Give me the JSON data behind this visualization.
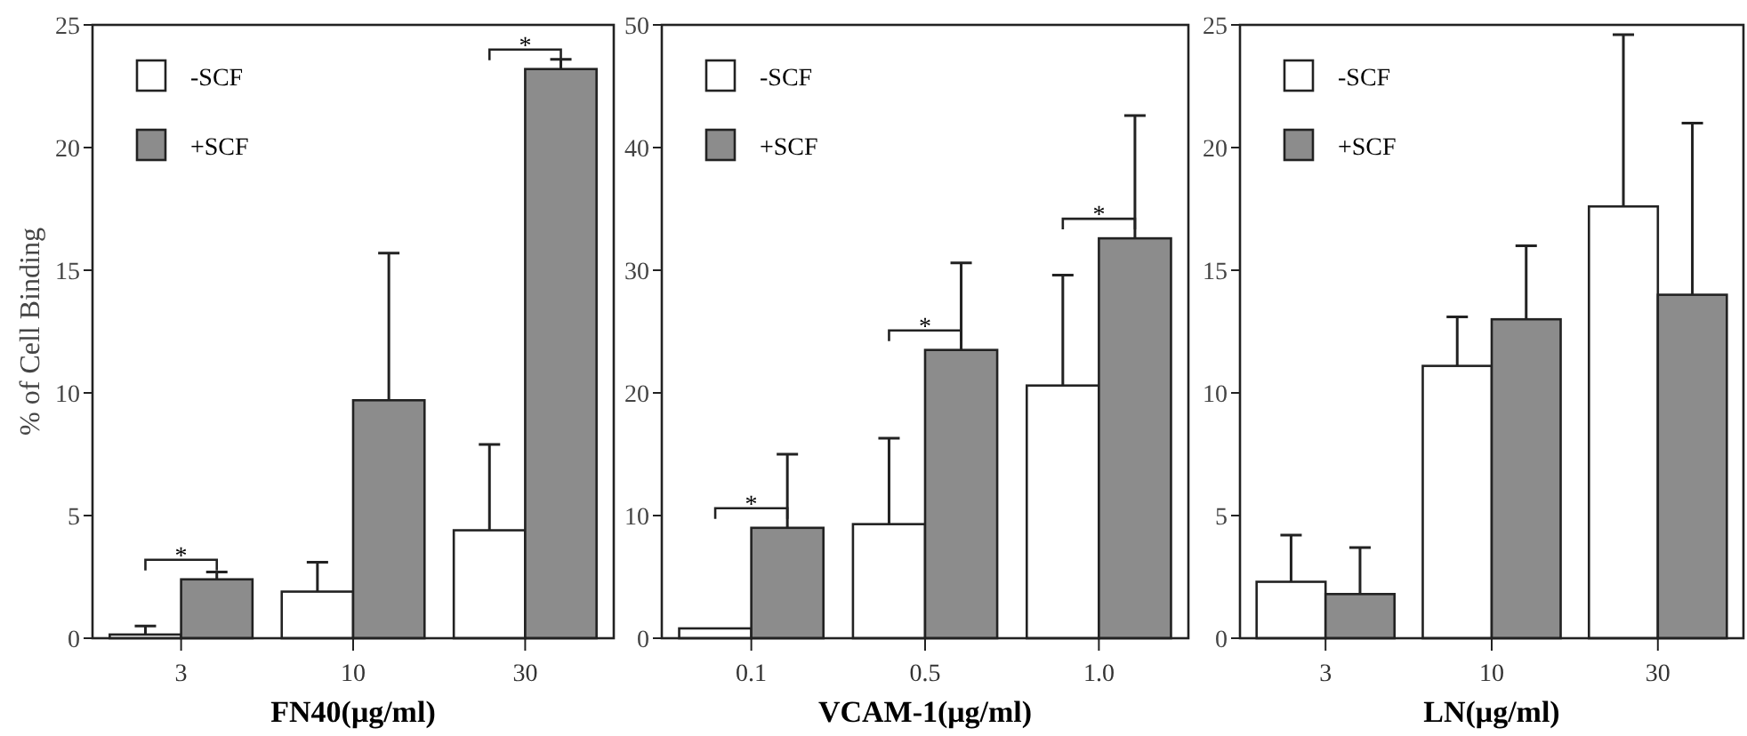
{
  "chart_data": [
    {
      "type": "bar",
      "xlabel": "FN40(μg/ml)",
      "ylabel": "% of Cell Binding",
      "categories": [
        "3",
        "10",
        "30"
      ],
      "ylim": [
        0,
        25
      ],
      "yticks": [
        0,
        5,
        10,
        15,
        20,
        25
      ],
      "legend": "top left",
      "grid": false,
      "series": [
        {
          "name": "-SCF",
          "color": "#ffffff",
          "values": [
            0.15,
            1.9,
            4.4
          ],
          "errors": [
            [
              0.15,
              0.5
            ],
            [
              1.9,
              3.1
            ],
            [
              4.4,
              7.9
            ]
          ]
        },
        {
          "name": "+SCF",
          "color": "#8c8c8c",
          "values": [
            2.4,
            9.7,
            23.2
          ],
          "errors": [
            [
              2.4,
              2.7
            ],
            [
              9.7,
              15.7
            ],
            [
              23.2,
              23.6
            ]
          ]
        }
      ],
      "annotations": [
        {
          "text": "*",
          "x": "3",
          "y": 2.4
        },
        {
          "text": "*",
          "x": "30",
          "y": 23.2
        }
      ]
    },
    {
      "type": "bar",
      "xlabel": "VCAM-1(μg/ml)",
      "categories": [
        "0.1",
        "0.5",
        "1.0"
      ],
      "ylim": [
        0,
        50
      ],
      "yticks": [
        0,
        10,
        20,
        30,
        40,
        50
      ],
      "legend": "top left",
      "grid": false,
      "series": [
        {
          "name": "-SCF",
          "color": "#ffffff",
          "values": [
            0.8,
            9.3,
            20.6
          ],
          "errors": [
            null,
            [
              9.3,
              16.3
            ],
            [
              20.6,
              29.6
            ]
          ]
        },
        {
          "name": "+SCF",
          "color": "#8c8c8c",
          "values": [
            9.0,
            23.5,
            32.6
          ],
          "errors": [
            [
              9.0,
              15.0
            ],
            [
              23.5,
              30.6
            ],
            [
              32.6,
              42.6
            ]
          ]
        }
      ],
      "annotations": [
        {
          "text": "*",
          "x": "0.1",
          "y": 9.0
        },
        {
          "text": "*",
          "x": "0.5",
          "y": 23.5
        },
        {
          "text": "*",
          "x": "1.0",
          "y": 32.6
        }
      ]
    },
    {
      "type": "bar",
      "xlabel": "LN(μg/ml)",
      "categories": [
        "3",
        "10",
        "30"
      ],
      "ylim": [
        0,
        25
      ],
      "yticks": [
        0,
        5,
        10,
        15,
        20,
        25
      ],
      "legend": "top left",
      "grid": false,
      "series": [
        {
          "name": "-SCF",
          "color": "#ffffff",
          "values": [
            2.3,
            11.1,
            17.6
          ],
          "errors": [
            [
              2.3,
              4.2
            ],
            [
              11.1,
              13.1
            ],
            [
              17.6,
              24.6
            ]
          ]
        },
        {
          "name": "+SCF",
          "color": "#8c8c8c",
          "values": [
            1.8,
            13.0,
            14.0
          ],
          "errors": [
            [
              1.8,
              3.7
            ],
            [
              13.0,
              16.0
            ],
            [
              14.0,
              21.0
            ]
          ]
        }
      ]
    }
  ]
}
